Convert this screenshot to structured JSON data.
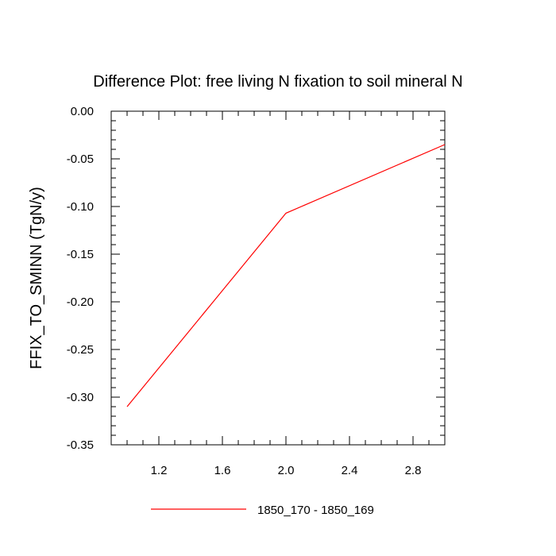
{
  "chart_data": {
    "type": "line",
    "title": "Difference Plot: free living N fixation to soil mineral N",
    "xlabel": "",
    "ylabel": "FFIX_TO_SMINN  (TgN/y)",
    "xlim": [
      0.9,
      3.0
    ],
    "ylim": [
      -0.35,
      0.0
    ],
    "xticks": [
      1.2,
      1.6,
      2.0,
      2.4,
      2.8
    ],
    "xtick_labels": [
      "1.2",
      "1.6",
      "2.0",
      "2.4",
      "2.8"
    ],
    "yticks": [
      0.0,
      -0.05,
      -0.1,
      -0.15,
      -0.2,
      -0.25,
      -0.3,
      -0.35
    ],
    "ytick_labels": [
      "0.00",
      "-0.05",
      "-0.10",
      "-0.15",
      "-0.20",
      "-0.25",
      "-0.30",
      "-0.35"
    ],
    "grid": false,
    "legend_position": "bottom-center",
    "series": [
      {
        "name": "1850_170 - 1850_169",
        "color": "#ff0000",
        "x": [
          1.0,
          2.0,
          3.0
        ],
        "y": [
          -0.31,
          -0.107,
          -0.035
        ]
      }
    ]
  }
}
